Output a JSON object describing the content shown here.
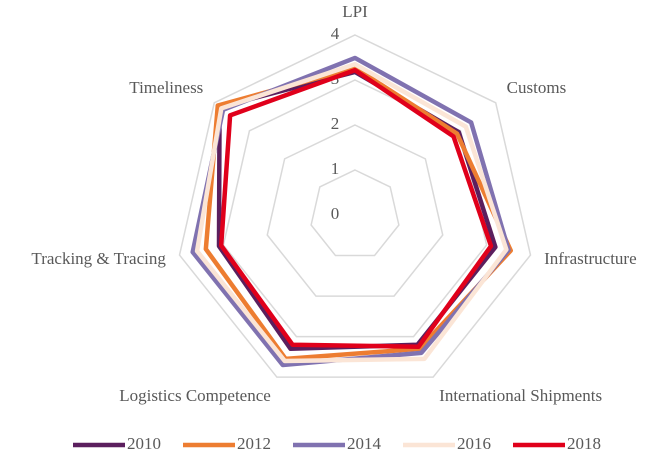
{
  "chart_data": {
    "type": "radar",
    "categories": [
      "LPI",
      "Customs",
      "Infrastructure",
      "International Shipments",
      "Logistics Competence",
      "Tracking & Tracing",
      "Timeliness"
    ],
    "series": [
      {
        "name": "2010",
        "color": "#5b1f5e",
        "values": [
          3.18,
          2.95,
          3.2,
          3.2,
          3.3,
          3.1,
          3.85
        ]
      },
      {
        "name": "2012",
        "color": "#ed7d31",
        "values": [
          3.27,
          2.9,
          3.55,
          3.3,
          3.55,
          3.4,
          3.9
        ]
      },
      {
        "name": "2014",
        "color": "#8072b0",
        "values": [
          3.49,
          3.3,
          3.5,
          3.4,
          3.7,
          3.7,
          3.75
        ]
      },
      {
        "name": "2016",
        "color": "#fbe5d6",
        "values": [
          3.35,
          3.15,
          3.45,
          3.55,
          3.6,
          3.6,
          3.8
        ]
      },
      {
        "name": "2018",
        "color": "#e0001b",
        "values": [
          3.22,
          2.8,
          3.1,
          3.25,
          3.2,
          3.05,
          3.55
        ]
      }
    ],
    "ylim": [
      0,
      4
    ],
    "yticks": [
      0,
      1,
      2,
      3,
      4
    ],
    "grid": true,
    "legend": "bottom"
  }
}
